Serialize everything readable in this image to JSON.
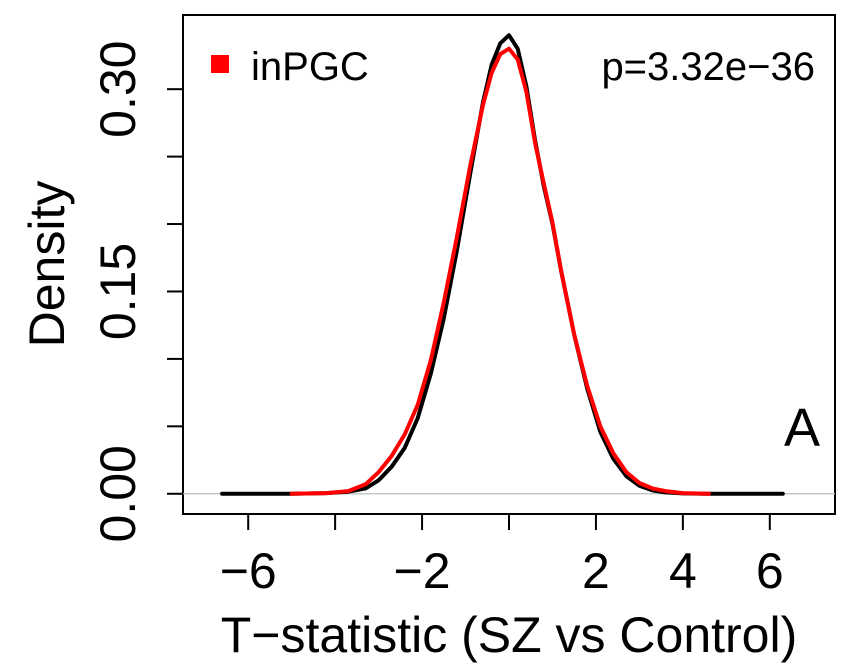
{
  "chart_data": {
    "type": "line",
    "title": "",
    "xlabel": "T−statistic (SZ vs Control)",
    "ylabel": "Density",
    "xlim": [
      -7.5,
      7.5
    ],
    "ylim": [
      -0.015,
      0.355
    ],
    "xticks": [
      -6,
      -4,
      -2,
      0,
      2,
      4,
      6
    ],
    "xtick_labels": [
      "−6",
      "",
      "−2",
      "",
      "2",
      "4",
      "6"
    ],
    "yticks": [
      0,
      0.05,
      0.1,
      0.15,
      0.2,
      0.25,
      0.3
    ],
    "ytick_labels": [
      "0.00",
      "",
      "",
      "0.15",
      "",
      "",
      "0.30"
    ],
    "hline": 0,
    "legend": {
      "position": "top-left",
      "label": "inPGC",
      "color": "#ff0000"
    },
    "annotation_p": "p=3.32e−36",
    "panel_label": "A",
    "series": [
      {
        "color": "#000000",
        "x": [
          -6.6,
          -5,
          -4.2,
          -3.7,
          -3.3,
          -3.0,
          -2.7,
          -2.4,
          -2.1,
          -1.8,
          -1.5,
          -1.2,
          -0.9,
          -0.6,
          -0.4,
          -0.2,
          0.0,
          0.2,
          0.4,
          0.6,
          0.8,
          1.0,
          1.2,
          1.5,
          1.8,
          2.1,
          2.4,
          2.7,
          3.0,
          3.3,
          3.6,
          4.0,
          4.5,
          5.5,
          6.3
        ],
        "y": [
          0,
          0,
          0.0005,
          0.0015,
          0.004,
          0.01,
          0.02,
          0.034,
          0.056,
          0.089,
          0.13,
          0.18,
          0.236,
          0.29,
          0.318,
          0.334,
          0.34,
          0.33,
          0.302,
          0.262,
          0.228,
          0.2,
          0.165,
          0.118,
          0.078,
          0.046,
          0.026,
          0.013,
          0.006,
          0.0025,
          0.001,
          0.0003,
          0,
          0,
          0
        ]
      },
      {
        "color": "#ff0000",
        "x": [
          -5.0,
          -4.2,
          -3.7,
          -3.3,
          -3.0,
          -2.7,
          -2.4,
          -2.1,
          -1.8,
          -1.5,
          -1.2,
          -0.9,
          -0.6,
          -0.4,
          -0.2,
          0.0,
          0.2,
          0.4,
          0.6,
          0.8,
          1.0,
          1.2,
          1.5,
          1.8,
          2.1,
          2.4,
          2.7,
          3.0,
          3.3,
          3.6,
          4.0,
          4.6
        ],
        "y": [
          0,
          0.0005,
          0.002,
          0.007,
          0.016,
          0.028,
          0.044,
          0.066,
          0.099,
          0.142,
          0.19,
          0.242,
          0.288,
          0.312,
          0.326,
          0.33,
          0.322,
          0.298,
          0.26,
          0.23,
          0.201,
          0.165,
          0.118,
          0.08,
          0.05,
          0.03,
          0.016,
          0.008,
          0.004,
          0.002,
          0.0005,
          0
        ]
      }
    ]
  }
}
